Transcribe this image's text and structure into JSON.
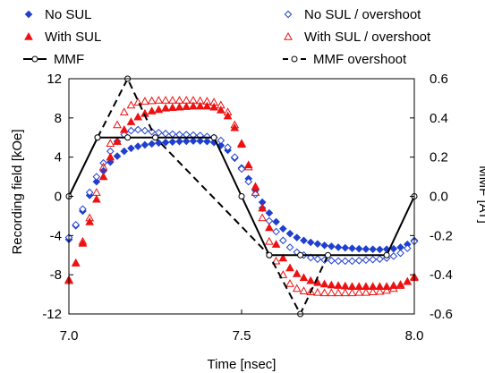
{
  "chart_data": {
    "type": "scatter",
    "xlabel": "Time [nsec]",
    "ylabel_left": "Recording field [kOe]",
    "ylabel_right": "MMF [AT]",
    "xlim": [
      7.0,
      8.0
    ],
    "ylim_left": [
      -12,
      12
    ],
    "ylim_right": [
      -0.6,
      0.6
    ],
    "x_ticks": [
      "7.0",
      "7.5",
      "8.0"
    ],
    "y_ticks_left": [
      "12",
      "8",
      "4",
      "0",
      "-4",
      "-8",
      "-12"
    ],
    "y_ticks_right": [
      "0.6",
      "0.4",
      "0.2",
      "0.0",
      "-0.2",
      "-0.4",
      "-0.6"
    ],
    "grid": false,
    "legend_position": "top",
    "colors": {
      "blue": "#1f3fcf",
      "red": "#ee1111",
      "black": "#000000"
    },
    "series": [
      {
        "name": "No SUL",
        "axis": "left",
        "marker": "filled-diamond",
        "color": "#1f3fcf",
        "x": [
          7.0,
          7.02,
          7.04,
          7.06,
          7.08,
          7.1,
          7.12,
          7.14,
          7.16,
          7.18,
          7.2,
          7.22,
          7.24,
          7.26,
          7.28,
          7.3,
          7.32,
          7.34,
          7.36,
          7.38,
          7.4,
          7.42,
          7.44,
          7.46,
          7.48,
          7.5,
          7.52,
          7.54,
          7.56,
          7.58,
          7.6,
          7.62,
          7.64,
          7.66,
          7.68,
          7.7,
          7.72,
          7.74,
          7.76,
          7.78,
          7.8,
          7.82,
          7.84,
          7.86,
          7.88,
          7.9,
          7.92,
          7.94,
          7.96,
          7.98,
          8.0
        ],
        "y": [
          -4.4,
          -3.0,
          -1.5,
          0.1,
          1.5,
          2.6,
          3.5,
          4.1,
          4.6,
          4.9,
          5.1,
          5.25,
          5.35,
          5.45,
          5.5,
          5.55,
          5.6,
          5.62,
          5.65,
          5.65,
          5.6,
          5.5,
          5.2,
          4.7,
          3.9,
          2.9,
          1.8,
          0.6,
          -0.6,
          -1.7,
          -2.6,
          -3.3,
          -3.8,
          -4.2,
          -4.5,
          -4.7,
          -4.85,
          -5.0,
          -5.1,
          -5.2,
          -5.25,
          -5.3,
          -5.35,
          -5.38,
          -5.4,
          -5.42,
          -5.4,
          -5.35,
          -5.2,
          -4.9,
          -4.5
        ]
      },
      {
        "name": "No SUL / overshoot",
        "axis": "left",
        "marker": "open-diamond",
        "color": "#1f3fcf",
        "x": [
          7.0,
          7.02,
          7.04,
          7.06,
          7.08,
          7.1,
          7.12,
          7.14,
          7.16,
          7.18,
          7.2,
          7.22,
          7.24,
          7.26,
          7.28,
          7.3,
          7.32,
          7.34,
          7.36,
          7.38,
          7.4,
          7.42,
          7.44,
          7.46,
          7.48,
          7.5,
          7.52,
          7.54,
          7.56,
          7.58,
          7.6,
          7.62,
          7.64,
          7.66,
          7.68,
          7.7,
          7.72,
          7.74,
          7.76,
          7.78,
          7.8,
          7.82,
          7.84,
          7.86,
          7.88,
          7.9,
          7.92,
          7.94,
          7.96,
          7.98,
          8.0
        ],
        "y": [
          -4.2,
          -2.9,
          -1.3,
          0.4,
          2.0,
          3.4,
          4.6,
          5.6,
          6.3,
          6.7,
          6.8,
          6.7,
          6.6,
          6.5,
          6.4,
          6.35,
          6.3,
          6.3,
          6.25,
          6.2,
          6.1,
          6.0,
          5.7,
          5.0,
          4.0,
          2.8,
          1.5,
          0.2,
          -1.2,
          -2.5,
          -3.6,
          -4.5,
          -5.2,
          -5.7,
          -6.0,
          -6.25,
          -6.4,
          -6.5,
          -6.55,
          -6.6,
          -6.6,
          -6.6,
          -6.55,
          -6.5,
          -6.45,
          -6.4,
          -6.3,
          -6.1,
          -5.8,
          -5.3,
          -4.6
        ]
      },
      {
        "name": "With SUL",
        "axis": "left",
        "marker": "filled-triangle",
        "color": "#ee1111",
        "x": [
          7.0,
          7.02,
          7.04,
          7.06,
          7.08,
          7.1,
          7.12,
          7.14,
          7.16,
          7.18,
          7.2,
          7.22,
          7.24,
          7.26,
          7.28,
          7.3,
          7.32,
          7.34,
          7.36,
          7.38,
          7.4,
          7.42,
          7.44,
          7.46,
          7.48,
          7.5,
          7.52,
          7.54,
          7.56,
          7.58,
          7.6,
          7.62,
          7.64,
          7.66,
          7.68,
          7.7,
          7.72,
          7.74,
          7.76,
          7.78,
          7.8,
          7.82,
          7.84,
          7.86,
          7.88,
          7.9,
          7.92,
          7.94,
          7.96,
          7.98,
          8.0
        ],
        "y": [
          -8.5,
          -6.8,
          -4.8,
          -2.6,
          -0.3,
          2.0,
          4.0,
          5.6,
          6.8,
          7.6,
          8.1,
          8.45,
          8.7,
          8.85,
          9.0,
          9.05,
          9.1,
          9.15,
          9.2,
          9.2,
          9.2,
          9.1,
          8.8,
          8.2,
          7.0,
          5.3,
          3.2,
          1.0,
          -1.2,
          -3.2,
          -4.9,
          -6.3,
          -7.3,
          -7.9,
          -8.3,
          -8.6,
          -8.8,
          -8.95,
          -9.05,
          -9.1,
          -9.15,
          -9.2,
          -9.2,
          -9.2,
          -9.2,
          -9.2,
          -9.2,
          -9.1,
          -9.0,
          -8.7,
          -8.3
        ]
      },
      {
        "name": "With SUL / overshoot",
        "axis": "left",
        "marker": "open-triangle",
        "color": "#ee1111",
        "x": [
          7.0,
          7.02,
          7.04,
          7.06,
          7.08,
          7.1,
          7.12,
          7.14,
          7.16,
          7.18,
          7.2,
          7.22,
          7.24,
          7.26,
          7.28,
          7.3,
          7.32,
          7.34,
          7.36,
          7.38,
          7.4,
          7.42,
          7.44,
          7.46,
          7.48,
          7.5,
          7.52,
          7.54,
          7.56,
          7.58,
          7.6,
          7.62,
          7.64,
          7.66,
          7.68,
          7.7,
          7.72,
          7.74,
          7.76,
          7.78,
          7.8,
          7.82,
          7.84,
          7.86,
          7.88,
          7.9,
          7.92,
          7.94,
          7.96,
          7.98,
          8.0
        ],
        "y": [
          -8.6,
          -6.8,
          -4.6,
          -2.2,
          0.4,
          3.0,
          5.4,
          7.3,
          8.6,
          9.3,
          9.6,
          9.7,
          9.75,
          9.8,
          9.8,
          9.8,
          9.8,
          9.8,
          9.8,
          9.75,
          9.7,
          9.6,
          9.3,
          8.6,
          7.3,
          5.4,
          3.0,
          0.4,
          -2.2,
          -4.6,
          -6.6,
          -8.0,
          -8.9,
          -9.4,
          -9.65,
          -9.75,
          -9.8,
          -9.85,
          -9.85,
          -9.85,
          -9.85,
          -9.85,
          -9.8,
          -9.8,
          -9.75,
          -9.7,
          -9.6,
          -9.4,
          -9.1,
          -8.7,
          -8.2
        ]
      },
      {
        "name": "MMF",
        "axis": "right",
        "marker": "open-circle-line",
        "line": "solid",
        "color": "#000000",
        "x": [
          7.0,
          7.083,
          7.17,
          7.42,
          7.5,
          7.58,
          7.67,
          7.92,
          8.0
        ],
        "y": [
          0.0,
          0.3,
          0.3,
          0.3,
          0.0,
          -0.3,
          -0.3,
          -0.3,
          0.0
        ]
      },
      {
        "name": "MMF overshoot",
        "axis": "right",
        "marker": "open-circle-line",
        "line": "dashed",
        "color": "#000000",
        "x": [
          7.083,
          7.17,
          7.25,
          7.58,
          7.67,
          7.75
        ],
        "y": [
          0.3,
          0.6,
          0.3,
          -0.3,
          -0.6,
          -0.3
        ]
      }
    ]
  }
}
